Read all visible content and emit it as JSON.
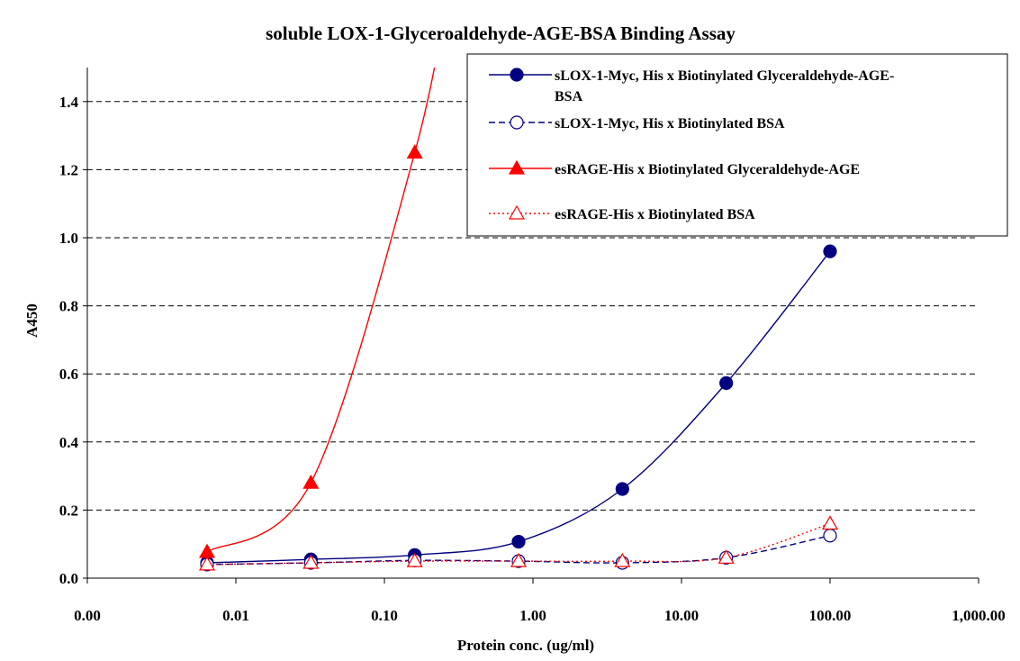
{
  "chart_data": {
    "type": "line",
    "title": "soluble LOX-1-Glyceroaldehyde-AGE-BSA Binding Assay",
    "xlabel": "Protein conc. (ug/ml)",
    "ylabel": "A450",
    "xscale": "log",
    "xlim": [
      0.001,
      1000
    ],
    "ylim": [
      0,
      1.5
    ],
    "grid": "horizontal dashed",
    "legend_position": "top-right",
    "x_ticks": [
      "0.00",
      "0.01",
      "0.10",
      "1.00",
      "10.00",
      "100.00",
      "1,000.00"
    ],
    "y_ticks": [
      "0.0",
      "0.2",
      "0.4",
      "0.6",
      "0.8",
      "1.0",
      "1.2",
      "1.4"
    ],
    "x": [
      0.0064,
      0.032,
      0.16,
      0.8,
      4,
      20,
      100
    ],
    "series": [
      {
        "name": "sLOX-1-Myc, His    x    Biotinylated Glyceraldehyde-AGE-BSA",
        "color": "#000080",
        "line": "solid",
        "marker": "filled-circle",
        "values": [
          0.045,
          0.055,
          0.068,
          0.107,
          0.262,
          0.573,
          0.96
        ]
      },
      {
        "name": "sLOX-1-Myc, His    x    Biotinylated BSA",
        "color": "#000080",
        "line": "dashed",
        "marker": "open-circle",
        "values": [
          0.04,
          0.045,
          0.052,
          0.05,
          0.045,
          0.06,
          0.125
        ]
      },
      {
        "name": "esRAGE-His    x    Biotinylated Glyceraldehyde-AGE",
        "color": "#ff0000",
        "line": "solid",
        "marker": "filled-triangle",
        "values": [
          0.077,
          0.28,
          1.25,
          null,
          null,
          null,
          null
        ]
      },
      {
        "name": "esRAGE-His    x    Biotinylated BSA",
        "color": "#ff0000",
        "line": "dotted",
        "marker": "open-triangle",
        "values": [
          0.04,
          0.045,
          0.05,
          0.05,
          0.05,
          0.06,
          0.16
        ]
      }
    ]
  }
}
